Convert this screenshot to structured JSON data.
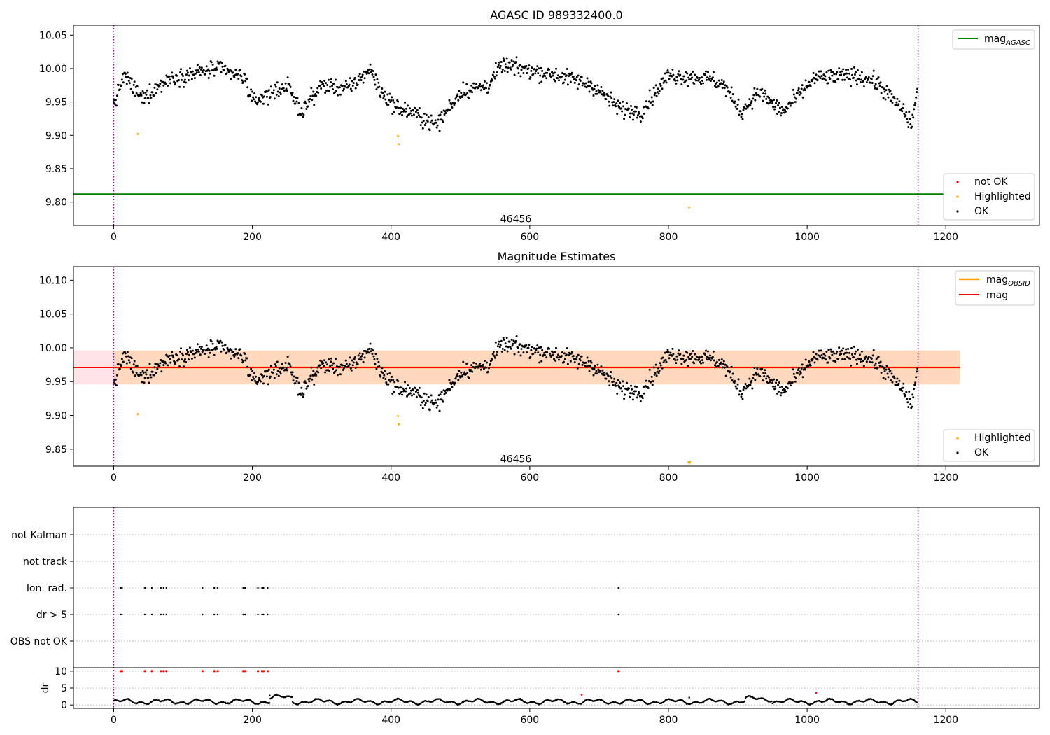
{
  "chart_data": [
    {
      "type": "scatter",
      "title": "AGASC ID 989332400.0",
      "xlim": [
        -58,
        1335
      ],
      "ylim": [
        9.765,
        10.065
      ],
      "xticks": [
        0,
        200,
        400,
        600,
        800,
        1000,
        1200
      ],
      "yticks": [
        "9.80",
        "9.85",
        "9.90",
        "9.95",
        "10.00",
        "10.05"
      ],
      "xlabel": "",
      "ylabel": "",
      "grid": false,
      "reference_lines": [
        {
          "name": "mag_AGASC",
          "y": 9.812,
          "color": "#008000"
        }
      ],
      "vlines": {
        "x": [
          0,
          1160
        ],
        "style": "dotted",
        "color": "#800080"
      },
      "annotations": [
        {
          "text": "46456",
          "x": 580,
          "y": 9.775
        }
      ],
      "legends": [
        {
          "placement": "top-right",
          "entries": [
            {
              "label": "mag",
              "subscript": "AGASC",
              "type": "line",
              "color": "#008000"
            }
          ]
        },
        {
          "placement": "bottom-right",
          "entries": [
            {
              "label": "not OK",
              "type": "marker",
              "color": "#ff0000"
            },
            {
              "label": "Highlighted",
              "type": "marker",
              "color": "#ffa500"
            },
            {
              "label": "OK",
              "type": "marker",
              "color": "#000000"
            }
          ]
        }
      ],
      "series": [
        {
          "name": "Highlighted",
          "color": "#ffa500",
          "x": [
            35,
            410,
            411,
            830
          ],
          "y": [
            9.902,
            9.899,
            9.887,
            9.792
          ]
        },
        {
          "name": "OK",
          "color": "#000000",
          "x_range": [
            0,
            1160
          ],
          "count": 1160,
          "anchors": [
            [
              0,
              9.945
            ],
            [
              15,
              9.99
            ],
            [
              40,
              9.955
            ],
            [
              80,
              9.985
            ],
            [
              150,
              10.0
            ],
            [
              190,
              9.985
            ],
            [
              200,
              9.95
            ],
            [
              250,
              9.975
            ],
            [
              270,
              9.935
            ],
            [
              300,
              9.975
            ],
            [
              340,
              9.97
            ],
            [
              370,
              10.0
            ],
            [
              385,
              9.965
            ],
            [
              410,
              9.94
            ],
            [
              430,
              9.935
            ],
            [
              465,
              9.915
            ],
            [
              500,
              9.965
            ],
            [
              540,
              9.975
            ],
            [
              560,
              10.005
            ],
            [
              640,
              9.99
            ],
            [
              690,
              9.975
            ],
            [
              730,
              9.94
            ],
            [
              760,
              9.935
            ],
            [
              800,
              9.99
            ],
            [
              860,
              9.985
            ],
            [
              880,
              9.975
            ],
            [
              905,
              9.935
            ],
            [
              930,
              9.965
            ],
            [
              965,
              9.935
            ],
            [
              1010,
              9.985
            ],
            [
              1070,
              9.99
            ],
            [
              1100,
              9.98
            ],
            [
              1140,
              9.935
            ],
            [
              1150,
              9.915
            ],
            [
              1160,
              9.97
            ]
          ]
        }
      ]
    },
    {
      "type": "scatter",
      "title": "Magnitude Estimates",
      "xlim": [
        -58,
        1335
      ],
      "ylim": [
        9.825,
        10.12
      ],
      "xticks": [
        0,
        200,
        400,
        600,
        800,
        1000,
        1200
      ],
      "yticks": [
        "9.85",
        "9.90",
        "9.95",
        "10.00",
        "10.05",
        "10.10"
      ],
      "xlabel": "",
      "ylabel": "",
      "grid": false,
      "reference_lines": [
        {
          "name": "mag",
          "y": 9.971,
          "color": "#ff0000"
        },
        {
          "name": "mag_OBSID",
          "y": 9.971,
          "x": [
            0,
            1220
          ],
          "color": "#ffa500"
        }
      ],
      "bands": [
        {
          "x": [
            -58,
            1220
          ],
          "y": [
            9.946,
            9.996
          ],
          "color": "#ffc0cb"
        },
        {
          "x": [
            0,
            1220
          ],
          "y": [
            9.946,
            9.996
          ],
          "color": "#ffa500"
        }
      ],
      "vlines": {
        "x": [
          0,
          1160
        ],
        "style": "dotted",
        "color": "#800080"
      },
      "annotations": [
        {
          "text": "46456",
          "x": 580,
          "y": 9.836
        }
      ],
      "out_of_range_markers": [
        {
          "x": 830,
          "y": 9.828,
          "color": "#ffa500"
        }
      ],
      "legends": [
        {
          "placement": "top-right",
          "entries": [
            {
              "label": "mag",
              "subscript": "OBSID",
              "type": "line",
              "color": "#ffa500"
            },
            {
              "label": "mag",
              "type": "line",
              "color": "#ff0000"
            }
          ]
        },
        {
          "placement": "bottom-right",
          "entries": [
            {
              "label": "Highlighted",
              "type": "marker",
              "color": "#ffa500"
            },
            {
              "label": "OK",
              "type": "marker",
              "color": "#000000"
            }
          ]
        }
      ],
      "series": [
        {
          "name": "Highlighted",
          "color": "#ffa500",
          "x": [
            35,
            410,
            411
          ],
          "y": [
            9.902,
            9.899,
            9.887
          ]
        },
        {
          "name": "OK",
          "color": "#000000",
          "same_as_panel": 0
        }
      ]
    },
    {
      "type": "scatter",
      "title": "",
      "xlim": [
        -58,
        1335
      ],
      "xticks": [
        0,
        200,
        400,
        600,
        800,
        1000,
        1200
      ],
      "flag_rows": [
        "not Kalman",
        "not track",
        "Ion. rad.",
        "dr > 5",
        "OBS not OK"
      ],
      "flag_points": {
        "Ion. rad.": [
          10,
          12,
          45,
          55,
          68,
          72,
          76,
          128,
          145,
          150,
          187,
          188,
          190,
          208,
          214,
          216,
          222,
          728
        ],
        "dr > 5": [
          10,
          12,
          45,
          55,
          68,
          72,
          76,
          128,
          145,
          150,
          187,
          188,
          190,
          208,
          214,
          216,
          222,
          728
        ],
        "not Kalman": [],
        "not track": [],
        "OBS not OK": []
      },
      "vlines": {
        "x": [
          0,
          1160
        ],
        "style": "dotted",
        "color": "#800080"
      },
      "dr_panel": {
        "ylabel": "dr",
        "ylim": [
          -1,
          11
        ],
        "yticks": [
          "0",
          "5",
          "10"
        ],
        "clipped_points": {
          "x": [
            10,
            12,
            45,
            55,
            68,
            72,
            76,
            128,
            145,
            150,
            187,
            188,
            190,
            208,
            214,
            216,
            222,
            728
          ],
          "y": 10,
          "color": "#ff0000"
        },
        "outliers": [
          {
            "x": 675,
            "y": 3.0,
            "color": "#ff0000"
          },
          {
            "x": 1013,
            "y": 3.6,
            "color": "#ff0000"
          },
          {
            "x": 225,
            "y": 2.8,
            "color": "#000000"
          },
          {
            "x": 830,
            "y": 2.2,
            "color": "#000000"
          }
        ],
        "series": {
          "name": "dr",
          "color": "#000000",
          "x_range": [
            0,
            1160
          ],
          "count": 1160,
          "level": 1.0
        }
      }
    }
  ]
}
